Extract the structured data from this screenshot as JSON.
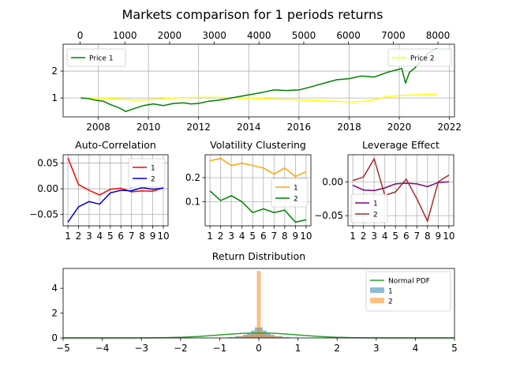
{
  "suptitle": "Markets comparison for 1 periods returns",
  "colors": {
    "s1": "#008000",
    "s2": "#ffff00",
    "grid": "#b0b0b0"
  },
  "chart_data": [
    {
      "id": "price",
      "type": "line",
      "title": "",
      "xlim": [
        2006.6,
        2022.2
      ],
      "xticks": [
        "2008",
        "2010",
        "2012",
        "2014",
        "2016",
        "2018",
        "2020",
        "2022"
      ],
      "xtick_values": [
        2008,
        2010,
        2012,
        2014,
        2016,
        2018,
        2020,
        2022
      ],
      "top_xlim": [
        -380,
        8370
      ],
      "top_xticks": [
        "0",
        "1000",
        "2000",
        "3000",
        "4000",
        "5000",
        "6000",
        "7000",
        "8000"
      ],
      "top_xtick_values": [
        0,
        1000,
        2000,
        3000,
        4000,
        5000,
        6000,
        7000,
        8000
      ],
      "ylim": [
        0.3,
        3.0
      ],
      "yticks": [
        "1",
        "2"
      ],
      "ytick_values": [
        1,
        2
      ],
      "grid": true,
      "series": [
        {
          "name": "Price 1",
          "color": "#008000",
          "x": [
            2007.3,
            2007.6,
            2007.9,
            2008.2,
            2008.5,
            2008.8,
            2009.1,
            2009.4,
            2009.8,
            2010.2,
            2010.6,
            2011.0,
            2011.4,
            2011.7,
            2012.0,
            2012.4,
            2012.8,
            2013.2,
            2013.6,
            2014.0,
            2014.5,
            2015.0,
            2015.5,
            2016.0,
            2016.5,
            2017.0,
            2017.5,
            2018.0,
            2018.5,
            2019.0,
            2019.5,
            2019.9,
            2020.1,
            2020.25,
            2020.4,
            2020.6,
            2020.8,
            2021.0,
            2021.2,
            2021.5
          ],
          "y": [
            1.0,
            0.98,
            0.92,
            0.88,
            0.75,
            0.65,
            0.5,
            0.6,
            0.72,
            0.78,
            0.72,
            0.8,
            0.82,
            0.78,
            0.8,
            0.88,
            0.92,
            0.98,
            1.05,
            1.12,
            1.2,
            1.3,
            1.28,
            1.3,
            1.42,
            1.55,
            1.68,
            1.72,
            1.82,
            1.78,
            1.95,
            2.05,
            2.1,
            1.55,
            1.95,
            2.1,
            2.3,
            2.5,
            2.7,
            2.85
          ]
        },
        {
          "name": "Price 2",
          "color": "#ffff00",
          "x": [
            2007.3,
            2008.0,
            2008.8,
            2009.5,
            2010.2,
            2011.0,
            2011.7,
            2012.3,
            2013.0,
            2013.8,
            2014.5,
            2015.2,
            2016.0,
            2016.8,
            2017.5,
            2018.2,
            2018.8,
            2019.5,
            2020.2,
            2020.8,
            2021.5
          ],
          "y": [
            1.0,
            1.0,
            0.97,
            0.92,
            0.95,
            1.0,
            1.02,
            1.03,
            1.02,
            1.0,
            0.98,
            0.95,
            0.93,
            0.9,
            0.88,
            0.85,
            0.9,
            1.05,
            1.1,
            1.12,
            1.15
          ]
        }
      ],
      "legends": [
        "top-left",
        "top-right"
      ]
    },
    {
      "id": "acf",
      "type": "line",
      "title": "Auto-Correlation",
      "xlim": [
        0.55,
        10.45
      ],
      "xticks": [
        "1",
        "2",
        "3",
        "4",
        "5",
        "6",
        "7",
        "8",
        "9",
        "10"
      ],
      "ylim": [
        -0.072,
        0.066
      ],
      "yticks": [
        "0.05",
        "0.00",
        "−0.05"
      ],
      "ytick_values": [
        0.05,
        0.0,
        -0.05
      ],
      "grid": true,
      "legend": "upper-right",
      "series": [
        {
          "name": "1",
          "color": "#ff0000",
          "values": [
            0.06,
            0.008,
            -0.003,
            -0.012,
            -0.001,
            0.001,
            -0.006,
            -0.004,
            -0.005,
            0.002
          ]
        },
        {
          "name": "2",
          "color": "#0000cd",
          "values": [
            -0.065,
            -0.035,
            -0.025,
            -0.03,
            -0.008,
            -0.003,
            -0.004,
            0.002,
            -0.001,
            0.001
          ]
        }
      ]
    },
    {
      "id": "vol",
      "type": "line",
      "title": "Volatility Clustering",
      "xlim": [
        0.55,
        10.45
      ],
      "xticks": [
        "1",
        "2",
        "3",
        "4",
        "5",
        "6",
        "7",
        "8",
        "9",
        "10"
      ],
      "ylim": [
        0.0,
        0.295
      ],
      "yticks": [
        "0.2",
        "0.1"
      ],
      "ytick_values": [
        0.2,
        0.1
      ],
      "grid": true,
      "legend": "center-right",
      "series": [
        {
          "name": "1",
          "color": "#ffa500",
          "values": [
            0.27,
            0.28,
            0.25,
            0.26,
            0.25,
            0.24,
            0.215,
            0.24,
            0.205,
            0.225
          ]
        },
        {
          "name": "2",
          "color": "#008000",
          "values": [
            0.145,
            0.105,
            0.125,
            0.1,
            0.055,
            0.07,
            0.055,
            0.065,
            0.015,
            0.025
          ]
        }
      ]
    },
    {
      "id": "lev",
      "type": "line",
      "title": "Leverage Effect",
      "xlim": [
        0.55,
        10.45
      ],
      "xticks": [
        "1",
        "2",
        "3",
        "4",
        "5",
        "6",
        "7",
        "8",
        "9",
        "10"
      ],
      "ylim": [
        -0.065,
        0.04
      ],
      "yticks": [
        "0.00",
        "−0.05"
      ],
      "ytick_values": [
        0.0,
        -0.05
      ],
      "grid": true,
      "legend": "lower-left",
      "series": [
        {
          "name": "1",
          "color": "#800080",
          "values": [
            -0.005,
            -0.012,
            -0.013,
            -0.009,
            -0.003,
            -0.002,
            -0.003,
            -0.007,
            -0.001,
            0.0
          ]
        },
        {
          "name": "2",
          "color": "#a52a2a",
          "values": [
            0.002,
            0.007,
            0.034,
            -0.02,
            -0.015,
            0.004,
            -0.025,
            -0.058,
            0.0,
            0.01
          ]
        }
      ]
    },
    {
      "id": "dist",
      "type": "bar",
      "title": "Return Distribution",
      "xlim": [
        -5,
        5
      ],
      "xticks": [
        "−5",
        "−4",
        "−3",
        "−2",
        "−1",
        "0",
        "1",
        "2",
        "3",
        "4",
        "5"
      ],
      "xtick_values": [
        -5,
        -4,
        -3,
        -2,
        -1,
        0,
        1,
        2,
        3,
        4,
        5
      ],
      "ylim": [
        0,
        5.6
      ],
      "yticks": [
        "0",
        "2",
        "4"
      ],
      "ytick_values": [
        0,
        2,
        4
      ],
      "grid": false,
      "legend": "upper-right",
      "normal_pdf": {
        "name": "Normal PDF",
        "color": "#2ca02c",
        "mean": 0.0,
        "std": 1.0
      },
      "hist_1": {
        "name": "1",
        "color": "#1f77b4",
        "bins": [
          [
            -1.0,
            -0.8,
            0.03
          ],
          [
            -0.8,
            -0.6,
            0.08
          ],
          [
            -0.6,
            -0.4,
            0.15
          ],
          [
            -0.4,
            -0.3,
            0.25
          ],
          [
            -0.3,
            -0.2,
            0.35
          ],
          [
            -0.2,
            -0.1,
            0.6
          ],
          [
            -0.1,
            0.0,
            0.85
          ],
          [
            0.0,
            0.1,
            0.85
          ],
          [
            0.1,
            0.2,
            0.6
          ],
          [
            0.2,
            0.3,
            0.35
          ],
          [
            0.3,
            0.4,
            0.25
          ],
          [
            0.4,
            0.6,
            0.15
          ],
          [
            0.6,
            0.8,
            0.08
          ],
          [
            0.8,
            1.0,
            0.03
          ]
        ]
      },
      "hist_2": {
        "name": "2",
        "color": "#ff7f0e",
        "bins": [
          [
            -0.6,
            -0.4,
            0.12
          ],
          [
            -0.4,
            -0.2,
            0.22
          ],
          [
            -0.2,
            -0.1,
            0.3
          ],
          [
            -0.1,
            -0.05,
            0.45
          ],
          [
            -0.05,
            0.05,
            5.4
          ],
          [
            0.05,
            0.1,
            0.45
          ],
          [
            0.1,
            0.2,
            0.3
          ],
          [
            0.2,
            0.4,
            0.22
          ],
          [
            0.4,
            0.6,
            0.12
          ]
        ]
      }
    }
  ]
}
